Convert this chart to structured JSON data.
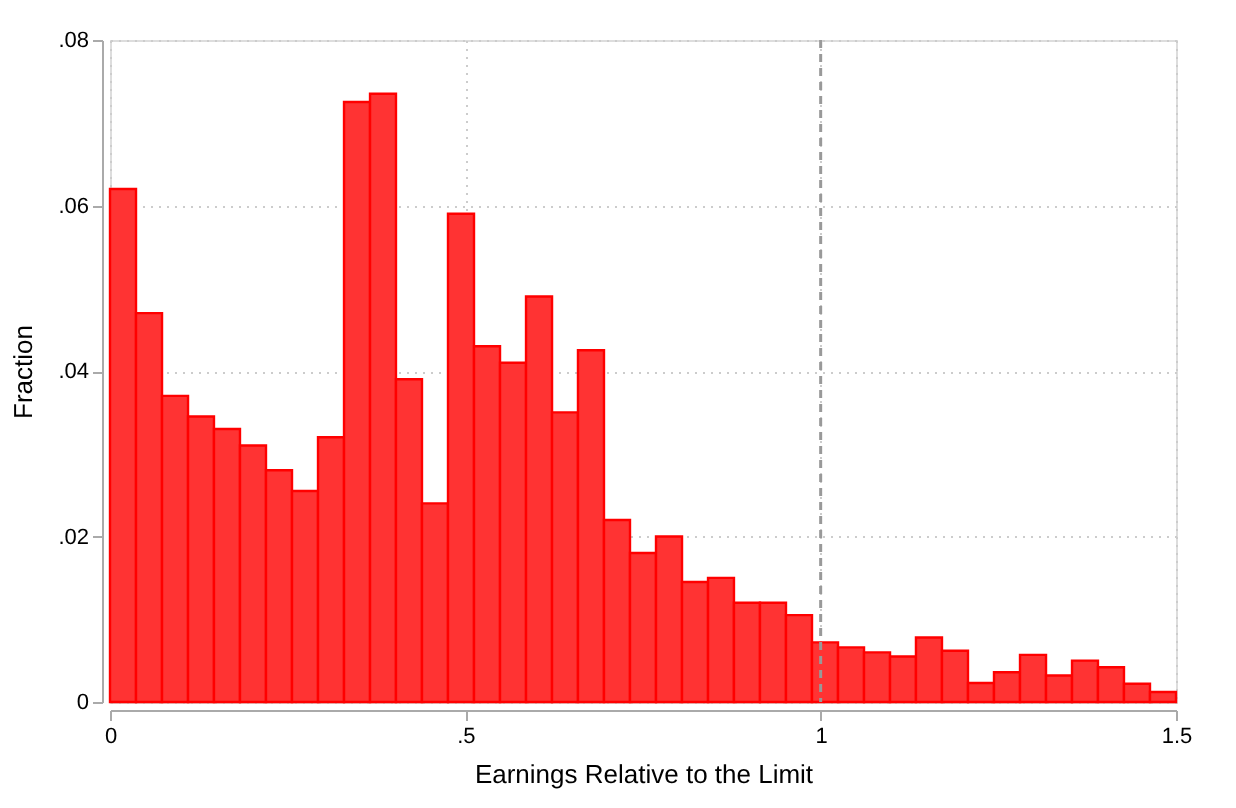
{
  "chart_data": {
    "type": "histogram",
    "xlabel": "Earnings Relative to the Limit",
    "ylabel": "Fraction",
    "color": "#ff3333",
    "bins": [
      0,
      0.0366,
      0.0732,
      0.1098,
      0.1463,
      0.1829,
      0.2195,
      0.2561,
      0.2927,
      0.3293,
      0.3659,
      0.4024,
      0.439,
      0.4756,
      0.5122,
      0.5488,
      0.5854,
      0.622,
      0.6585,
      0.6951,
      0.7317,
      0.7683,
      0.8049,
      0.8415,
      0.878,
      0.9146,
      0.9512,
      0.9878,
      1.0244,
      1.061,
      1.0976,
      1.1341,
      1.1707,
      1.2073,
      1.2439,
      1.2805,
      1.3171,
      1.3537,
      1.3902,
      1.4268,
      1.4634,
      1.5
    ],
    "values": [
      0.062,
      0.047,
      0.037,
      0.0345,
      0.033,
      0.031,
      0.028,
      0.0255,
      0.032,
      0.0725,
      0.0735,
      0.039,
      0.024,
      0.059,
      0.043,
      0.041,
      0.049,
      0.035,
      0.0425,
      0.022,
      0.018,
      0.02,
      0.0145,
      0.015,
      0.012,
      0.012,
      0.0105,
      0.0072,
      0.0066,
      0.006,
      0.0055,
      0.0078,
      0.0062,
      0.0023,
      0.0036,
      0.0057,
      0.0032,
      0.005,
      0.0042,
      0.0022,
      0.0012
    ],
    "xlim": [
      0,
      1.5
    ],
    "ylim": [
      0,
      0.08
    ],
    "xticks": [
      0,
      {
        "value": 0.5,
        "label": ".5"
      },
      1,
      {
        "value": 1.5,
        "label": "1.5"
      }
    ],
    "yticks": [
      0,
      {
        "value": 0.02,
        "label": ".02"
      },
      {
        "value": 0.04,
        "label": ".04"
      },
      {
        "value": 0.06,
        "label": ".06"
      },
      {
        "value": 0.08,
        "label": ".08"
      }
    ],
    "grid": true,
    "ref_lines": [
      {
        "axis": "x",
        "value": 1,
        "label": null,
        "line_style": "dashed",
        "color": "#999999"
      }
    ]
  }
}
